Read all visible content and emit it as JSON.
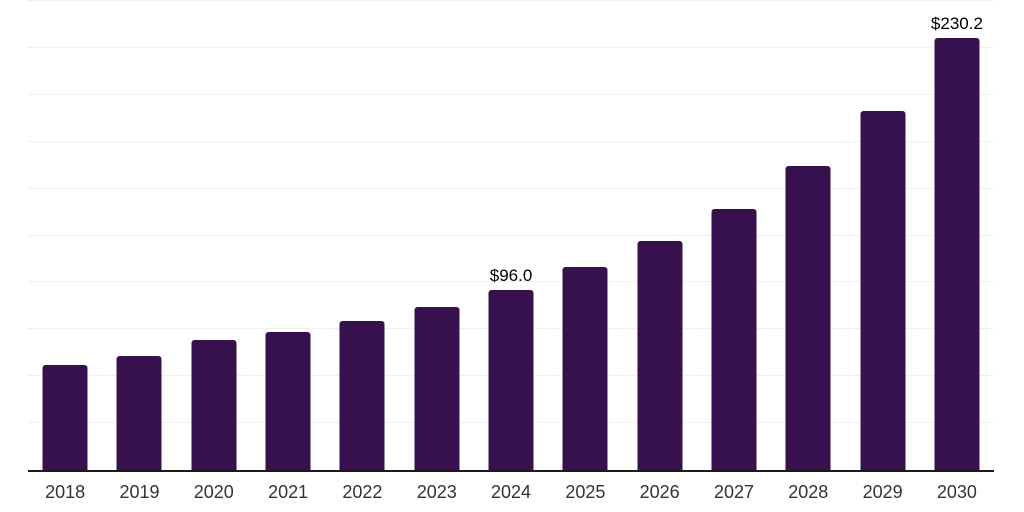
{
  "chart_data": {
    "type": "bar",
    "title": "",
    "xlabel": "",
    "ylabel": "",
    "categories": [
      "2018",
      "2019",
      "2020",
      "2021",
      "2022",
      "2023",
      "2024",
      "2025",
      "2026",
      "2027",
      "2028",
      "2029",
      "2030"
    ],
    "values": [
      56.0,
      60.6,
      69.3,
      73.7,
      79.6,
      86.8,
      96.0,
      108.0,
      121.9,
      139.2,
      162.0,
      191.4,
      230.2
    ],
    "point_labels": [
      "",
      "",
      "",
      "",
      "",
      "",
      "$96.0",
      "",
      "",
      "",
      "",
      "",
      "$230.2"
    ],
    "ylim": [
      0,
      250
    ],
    "gridline_interval": 25,
    "grid": "horizontal-only",
    "legend_position": "none",
    "y_axis_tick_labels_visible": false
  },
  "colors": {
    "bar_fill": "#37104E",
    "axis_line": "#1a1a1a",
    "gridline": "#f0f0f0",
    "tick_label": "#333333",
    "data_label": "#000000",
    "background": "#ffffff"
  }
}
